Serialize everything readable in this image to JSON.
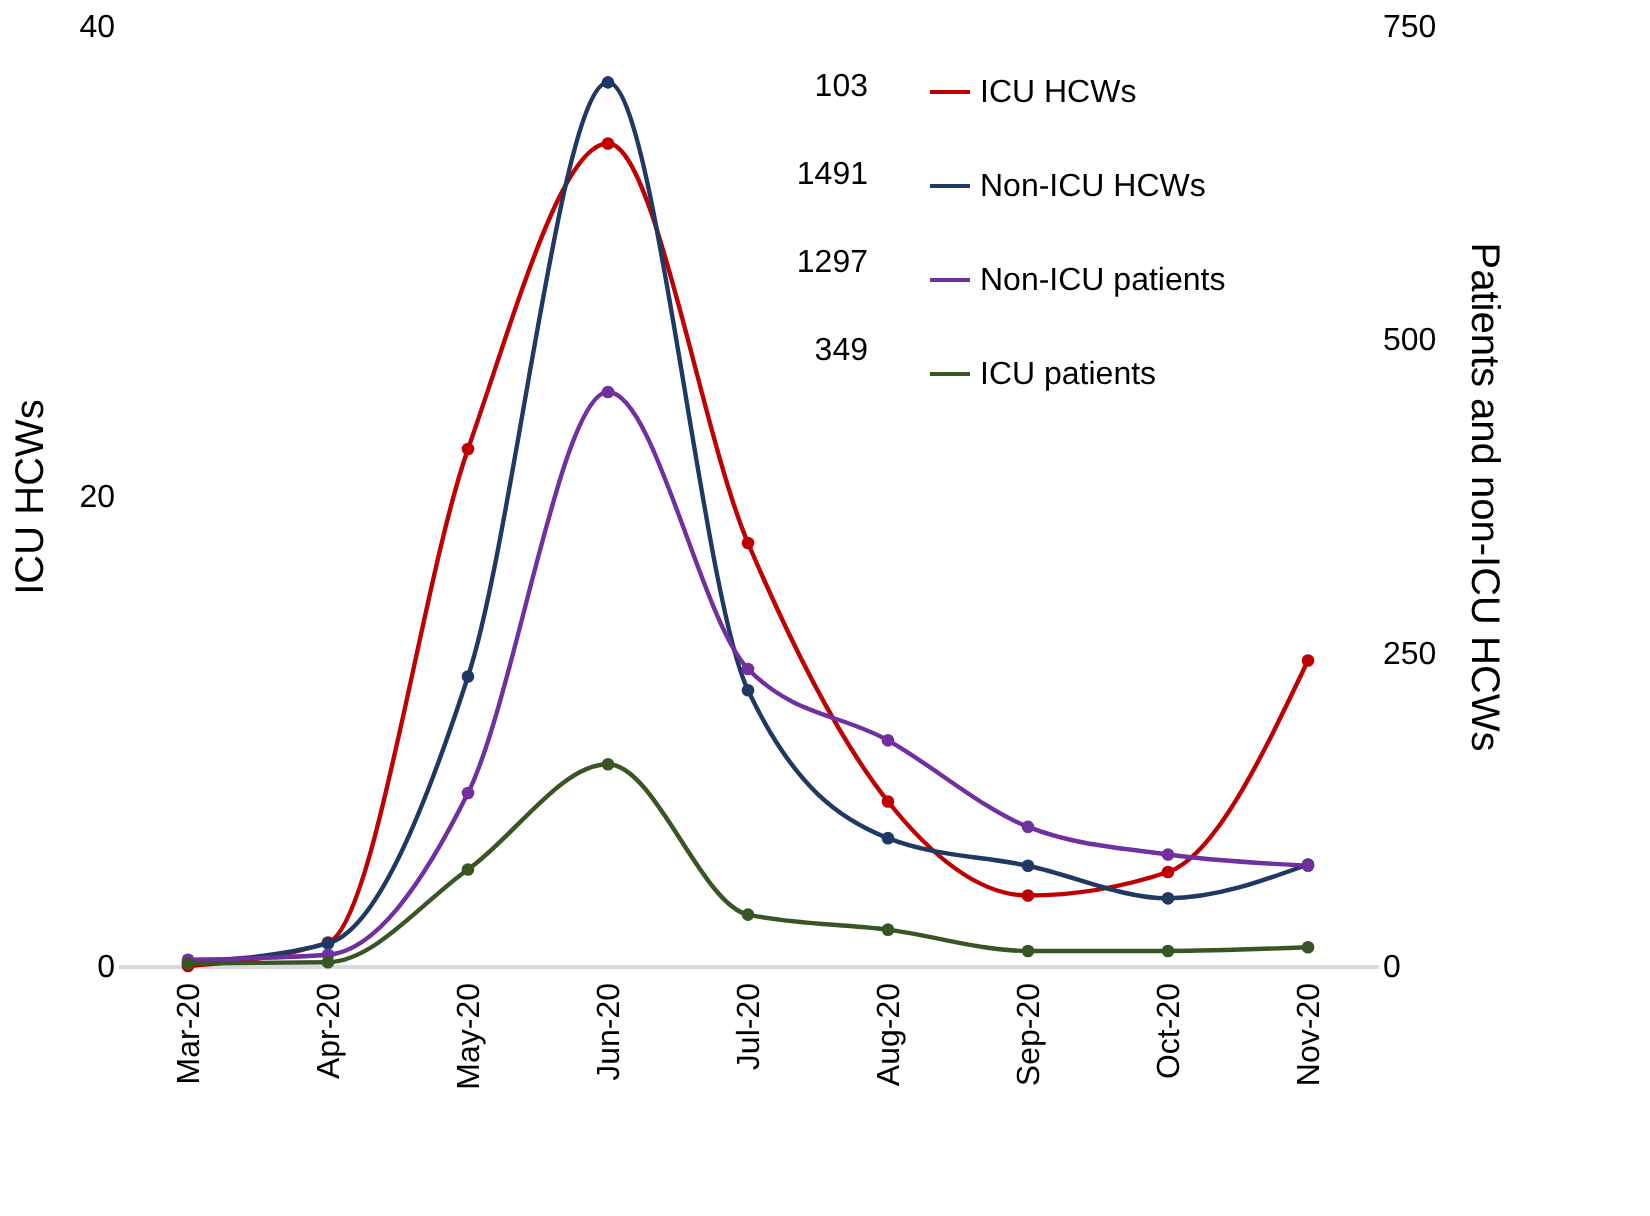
{
  "chart_data": {
    "type": "line",
    "categories": [
      "Mar-20",
      "Apr-20",
      "May-20",
      "Jun-20",
      "Jul-20",
      "Aug-20",
      "Sep-20",
      "Oct-20",
      "Nov-20"
    ],
    "ylabel": "ICU HCWs",
    "y2label": "Patients and non-ICU HCWs",
    "ylim": [
      0,
      40
    ],
    "yticks": [
      0,
      20,
      40
    ],
    "y2lim": [
      0,
      750
    ],
    "y2ticks": [
      0,
      250,
      500,
      750
    ],
    "series": [
      {
        "name": "ICU HCWs",
        "color": "#c00000",
        "values": [
          0,
          1,
          22,
          35,
          18,
          7,
          3,
          4,
          13
        ]
      },
      {
        "name": "Non-ICU HCWs",
        "color": "#1f3864",
        "axis": "y2",
        "values": [
          3,
          18,
          231,
          705,
          220,
          102,
          80,
          54,
          81
        ]
      },
      {
        "name": "Non-ICU patients",
        "color": "#7030a0",
        "axis": "y2",
        "values": [
          5,
          9,
          138,
          458,
          237,
          180,
          111,
          89,
          80
        ]
      },
      {
        "name": "ICU patients",
        "color": "#375623",
        "axis": "y2",
        "values": [
          2,
          3,
          77,
          161,
          41,
          29,
          12,
          12,
          15
        ]
      }
    ],
    "annotations": [
      "103",
      "1491",
      "1297",
      "349"
    ],
    "legend": "top right",
    "grid": false,
    "marker": "circle",
    "line_style": "solid"
  }
}
